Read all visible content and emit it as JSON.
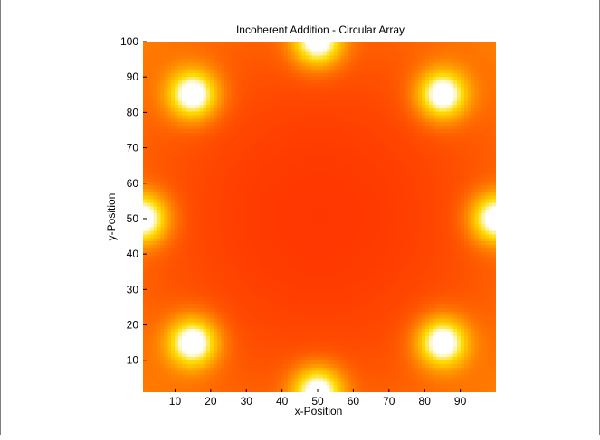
{
  "chart_data": {
    "type": "heatmap",
    "title": "Incoherent Addition - Circular Array",
    "xlabel": "x-Position",
    "ylabel": "y-Position",
    "xlim": [
      1,
      100
    ],
    "ylim": [
      1,
      100
    ],
    "x_ticks": [
      10,
      20,
      30,
      40,
      50,
      60,
      70,
      80,
      90
    ],
    "y_ticks": [
      10,
      20,
      30,
      40,
      50,
      60,
      70,
      80,
      90,
      100
    ],
    "grid": false,
    "legend": "none",
    "colormap": "hot",
    "sources": [
      {
        "x": 50,
        "y": 100
      },
      {
        "x": 85,
        "y": 85
      },
      {
        "x": 100,
        "y": 50
      },
      {
        "x": 85,
        "y": 15
      },
      {
        "x": 50,
        "y": 1
      },
      {
        "x": 15,
        "y": 15
      },
      {
        "x": 1,
        "y": 50
      },
      {
        "x": 15,
        "y": 85
      }
    ]
  }
}
